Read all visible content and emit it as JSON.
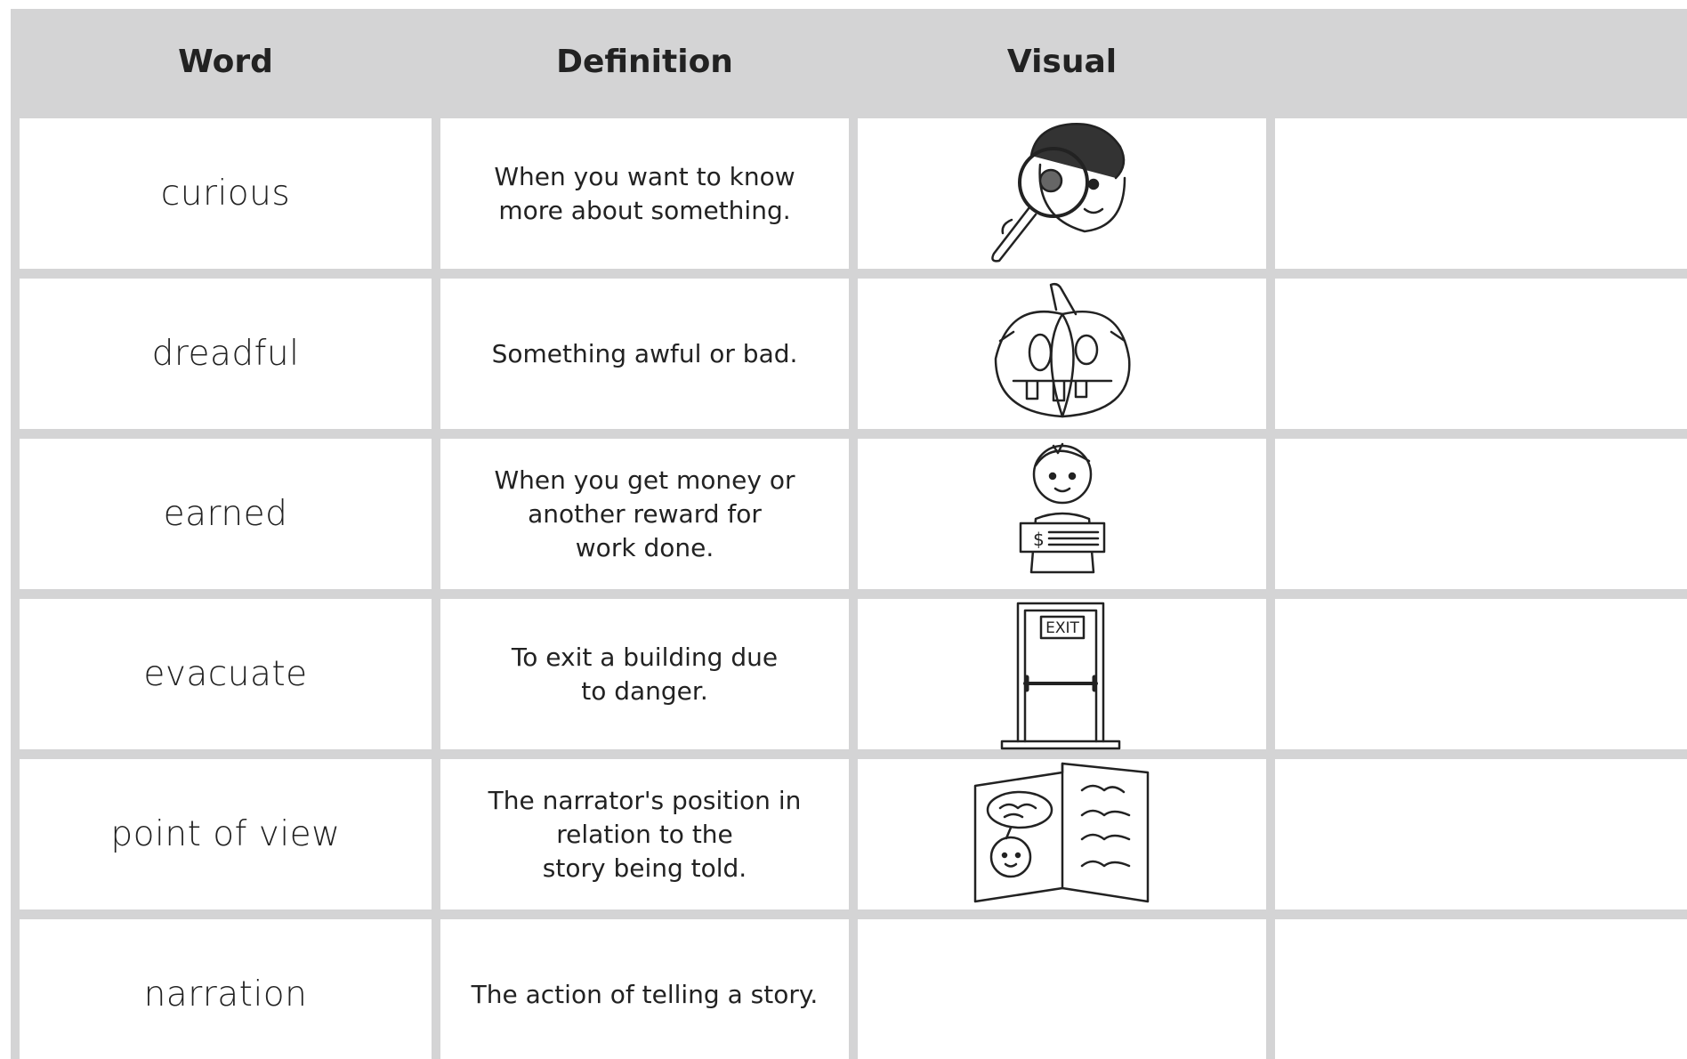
{
  "header": {
    "columns": [
      "Word",
      "Definition",
      "Visual"
    ]
  },
  "rows": [
    {
      "word": "curious",
      "definition": "When you want to know\nmore about something."
    },
    {
      "word": "dreadful",
      "definition": "Something awful or bad."
    },
    {
      "word": "earned",
      "definition": "When you get money or\nanother reward for\nwork done.",
      "visual_label": "$"
    },
    {
      "word": "evacuate",
      "definition": "To exit a building due\nto danger.",
      "visual_label": "EXIT"
    },
    {
      "word": "point of view",
      "definition": "The narrator's position in\nrelation to the\nstory being told."
    },
    {
      "word": "narration",
      "definition": "The action of telling a story."
    }
  ]
}
